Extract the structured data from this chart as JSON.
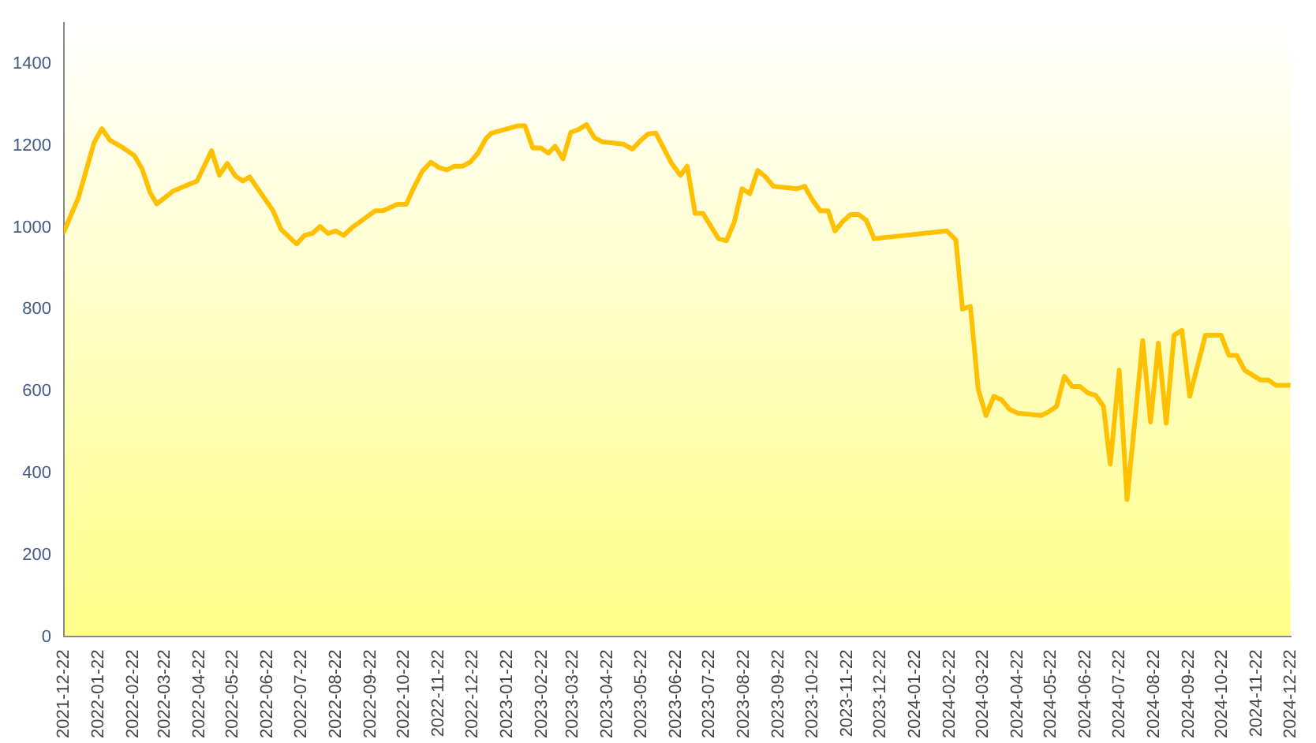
{
  "chart_data": {
    "type": "line",
    "marker": "none",
    "line_style": "solid",
    "x": [
      "2021-12-22",
      "2021-12-29",
      "2022-01-04",
      "2022-01-18",
      "2022-01-25",
      "2022-02-01",
      "2022-02-13",
      "2022-02-23",
      "2022-03-02",
      "2022-03-09",
      "2022-03-15",
      "2022-03-30",
      "2022-04-20",
      "2022-05-03",
      "2022-05-10",
      "2022-05-17",
      "2022-05-24",
      "2022-05-31",
      "2022-06-06",
      "2022-06-27",
      "2022-07-04",
      "2022-07-18",
      "2022-07-25",
      "2022-08-01",
      "2022-08-08",
      "2022-08-15",
      "2022-08-22",
      "2022-08-29",
      "2022-09-05",
      "2022-09-26",
      "2022-10-03",
      "2022-10-16",
      "2022-10-24",
      "2022-10-29",
      "2022-11-07",
      "2022-11-15",
      "2022-11-22",
      "2022-11-29",
      "2022-12-06",
      "2022-12-13",
      "2022-12-20",
      "2022-12-27",
      "2023-01-03",
      "2023-01-08",
      "2023-02-01",
      "2023-02-07",
      "2023-02-14",
      "2023-02-21",
      "2023-02-28",
      "2023-03-06",
      "2023-03-13",
      "2023-03-20",
      "2023-03-27",
      "2023-04-03",
      "2023-04-10",
      "2023-04-17",
      "2023-05-06",
      "2023-05-14",
      "2023-05-21",
      "2023-05-28",
      "2023-06-04",
      "2023-06-18",
      "2023-06-26",
      "2023-07-02",
      "2023-07-09",
      "2023-07-16",
      "2023-07-30",
      "2023-08-06",
      "2023-08-13",
      "2023-08-20",
      "2023-08-27",
      "2023-09-03",
      "2023-09-10",
      "2023-09-17",
      "2023-10-08",
      "2023-10-15",
      "2023-10-22",
      "2023-10-29",
      "2023-11-05",
      "2023-11-11",
      "2023-11-18",
      "2023-11-25",
      "2023-12-02",
      "2023-12-09",
      "2023-12-16",
      "2024-02-19",
      "2024-02-27",
      "2024-03-04",
      "2024-03-11",
      "2024-03-18",
      "2024-03-25",
      "2024-04-01",
      "2024-04-08",
      "2024-04-15",
      "2024-04-22",
      "2024-05-13",
      "2024-05-20",
      "2024-05-27",
      "2024-06-03",
      "2024-06-10",
      "2024-06-17",
      "2024-06-24",
      "2024-07-01",
      "2024-07-08",
      "2024-07-14",
      "2024-07-22",
      "2024-07-29",
      "2024-08-05",
      "2024-08-12",
      "2024-08-19",
      "2024-08-26",
      "2024-09-02",
      "2024-09-09",
      "2024-09-16",
      "2024-09-23",
      "2024-10-07",
      "2024-10-21",
      "2024-10-28",
      "2024-11-04",
      "2024-11-11",
      "2024-11-25",
      "2024-12-02",
      "2024-12-09",
      "2024-12-22"
    ],
    "series": [
      {
        "color": "#ffc000",
        "values": [
          990,
          1035,
          1073,
          1208,
          1242,
          1214,
          1195,
          1176,
          1143,
          1086,
          1058,
          1090,
          1114,
          1188,
          1128,
          1157,
          1127,
          1114,
          1124,
          1041,
          996,
          960,
          981,
          986,
          1003,
          986,
          992,
          981,
          999,
          1041,
          1041,
          1057,
          1057,
          1088,
          1137,
          1160,
          1147,
          1141,
          1150,
          1150,
          1160,
          1182,
          1217,
          1231,
          1249,
          1249,
          1195,
          1195,
          1182,
          1199,
          1168,
          1233,
          1240,
          1252,
          1220,
          1210,
          1204,
          1192,
          1212,
          1229,
          1231,
          1157,
          1128,
          1150,
          1035,
          1035,
          973,
          968,
          1013,
          1095,
          1083,
          1140,
          1124,
          1101,
          1095,
          1101,
          1067,
          1041,
          1041,
          992,
          1015,
          1032,
          1032,
          1018,
          973,
          992,
          970,
          801,
          808,
          605,
          541,
          588,
          579,
          556,
          547,
          541,
          550,
          563,
          637,
          612,
          612,
          596,
          590,
          563,
          422,
          652,
          336,
          528,
          724,
          525,
          718,
          522,
          737,
          749,
          588,
          737,
          737,
          688,
          688,
          652,
          628,
          628,
          615,
          615
        ]
      }
    ],
    "xlim": [
      "2021-12-22",
      "2024-12-22"
    ],
    "xticks": [
      "2021-12-22",
      "2022-01-22",
      "2022-02-22",
      "2022-03-22",
      "2022-04-22",
      "2022-05-22",
      "2022-06-22",
      "2022-07-22",
      "2022-08-22",
      "2022-09-22",
      "2022-10-22",
      "2022-11-22",
      "2022-12-22",
      "2023-01-22",
      "2023-02-22",
      "2023-03-22",
      "2023-04-22",
      "2023-05-22",
      "2023-06-22",
      "2023-07-22",
      "2023-08-22",
      "2023-09-22",
      "2023-10-22",
      "2023-11-22",
      "2023-12-22",
      "2024-01-22",
      "2024-02-22",
      "2024-03-22",
      "2024-04-22",
      "2024-05-22",
      "2024-06-22",
      "2024-07-22",
      "2024-08-22",
      "2024-09-22",
      "2024-10-22",
      "2024-11-22",
      "2024-12-22"
    ],
    "ylim": [
      0,
      1500
    ],
    "yticks": [
      0,
      200,
      400,
      600,
      800,
      1000,
      1200,
      1400
    ]
  }
}
